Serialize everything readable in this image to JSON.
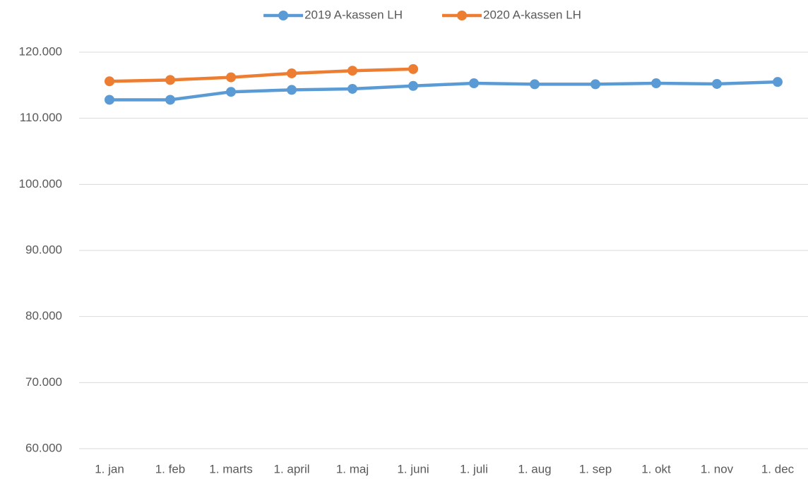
{
  "chart_data": {
    "type": "line",
    "categories": [
      "1. jan",
      "1. feb",
      "1. marts",
      "1. april",
      "1. maj",
      "1. juni",
      "1. juli",
      "1. aug",
      "1. sep",
      "1. okt",
      "1. nov",
      "1. dec"
    ],
    "series": [
      {
        "name": "2019 A-kassen LH",
        "color": "#5b9bd5",
        "values": [
          112800,
          112800,
          114000,
          114300,
          114450,
          114900,
          115300,
          115150,
          115150,
          115300,
          115200,
          115500
        ]
      },
      {
        "name": "2020 A-kassen LH",
        "color": "#ed7d31",
        "values": [
          115600,
          115800,
          116200,
          116800,
          117200,
          117450,
          null,
          null,
          null,
          null,
          null,
          null
        ]
      }
    ],
    "ylim": [
      60000,
      120000
    ],
    "yticks": [
      {
        "value": 60000,
        "label": "60.000"
      },
      {
        "value": 70000,
        "label": "70.000"
      },
      {
        "value": 80000,
        "label": "80.000"
      },
      {
        "value": 90000,
        "label": "90.000"
      },
      {
        "value": 100000,
        "label": "100.000"
      },
      {
        "value": 110000,
        "label": "110.000"
      },
      {
        "value": 120000,
        "label": "120.000"
      }
    ],
    "grid": true,
    "legend": "top"
  }
}
